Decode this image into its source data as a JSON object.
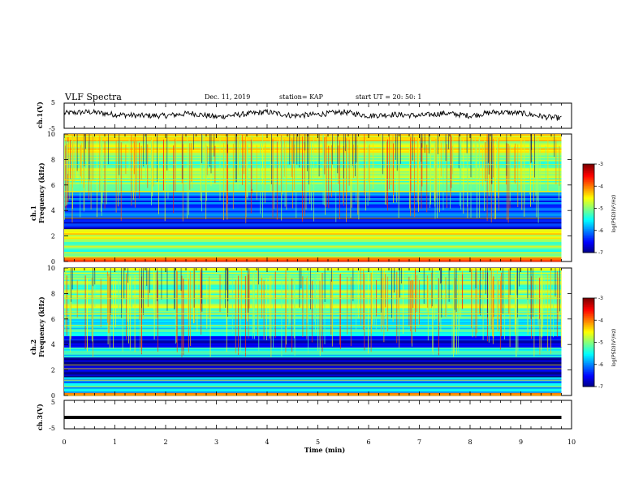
{
  "header": {
    "title": "VLF Spectra",
    "date": "Dec. 11, 2019",
    "station": "station= KAP",
    "start": "start  UT =   20: 50: 1"
  },
  "chart_data": [
    {
      "type": "line",
      "panel": "ch1-waveform",
      "ylabel": "ch.1(V)",
      "ylim": [
        -5,
        5
      ],
      "yticks": [
        "5",
        "-5"
      ],
      "xlim": [
        0,
        10
      ],
      "x": [
        0,
        0.5,
        1,
        1.5,
        2,
        2.5,
        3,
        3.5,
        4,
        4.5,
        5,
        5.5,
        6,
        6.5,
        7,
        7.5,
        8,
        8.5,
        9,
        9.5,
        9.8
      ],
      "values": [
        1.0,
        1.5,
        0.5,
        0.0,
        0.0,
        1.0,
        -0.5,
        0.5,
        1.5,
        0.0,
        0.5,
        1.5,
        0.0,
        0.5,
        0.0,
        1.0,
        0.0,
        1.5,
        1.0,
        -0.5,
        -1.0
      ],
      "color": "#000000"
    },
    {
      "type": "heatmap",
      "panel": "ch1-spectrogram",
      "ylabel": "ch.1\nFrequency (kHz)",
      "ylim": [
        0,
        10
      ],
      "yticks": [
        "0",
        "2",
        "4",
        "6",
        "8",
        "10"
      ],
      "xlim": [
        0,
        9.8
      ],
      "zlabel": "log(PSD)(V²/Hz)",
      "zlim": [
        -7,
        -3
      ],
      "zticks": [
        "-3",
        "-4",
        "-5",
        "-6",
        "-7"
      ],
      "bands": [
        {
          "from": 0,
          "to": 0.3,
          "level": -3.8
        },
        {
          "from": 0.3,
          "to": 1.8,
          "level": -5.2
        },
        {
          "from": 1.8,
          "to": 2.6,
          "level": -4.6
        },
        {
          "from": 2.6,
          "to": 3.5,
          "level": -6.6
        },
        {
          "from": 3.5,
          "to": 4.2,
          "level": -6.0
        },
        {
          "from": 4.2,
          "to": 5.5,
          "level": -6.2
        },
        {
          "from": 5.5,
          "to": 8.5,
          "level": -5.0
        },
        {
          "from": 8.5,
          "to": 10,
          "level": -4.6
        }
      ]
    },
    {
      "type": "heatmap",
      "panel": "ch2-spectrogram",
      "ylabel": "ch.2\nFrequency (kHz)",
      "ylim": [
        0,
        10
      ],
      "yticks": [
        "0",
        "2",
        "4",
        "6",
        "8",
        "10"
      ],
      "xlim": [
        0,
        9.8
      ],
      "zlabel": "log(PSD)(V²/Hz)",
      "zlim": [
        -7,
        -3
      ],
      "zticks": [
        "-3",
        "-4",
        "-5",
        "-6",
        "-7"
      ],
      "bands": [
        {
          "from": 0,
          "to": 0.2,
          "level": -3.8
        },
        {
          "from": 0.2,
          "to": 1.5,
          "level": -5.8
        },
        {
          "from": 1.5,
          "to": 3.0,
          "level": -6.9
        },
        {
          "from": 3.0,
          "to": 3.8,
          "level": -5.4
        },
        {
          "from": 3.8,
          "to": 4.7,
          "level": -6.5
        },
        {
          "from": 4.7,
          "to": 6.5,
          "level": -5.4
        },
        {
          "from": 6.5,
          "to": 10,
          "level": -5.0
        }
      ]
    },
    {
      "type": "line",
      "panel": "ch3-waveform",
      "ylabel": "ch.3(V)",
      "ylim": [
        -5,
        5
      ],
      "yticks": [
        "5",
        "-5"
      ],
      "xlim": [
        0,
        10
      ],
      "x": [
        0,
        9.8
      ],
      "values": [
        -1,
        -1
      ],
      "color": "#000000"
    }
  ],
  "xaxis": {
    "label": "Time (min)",
    "ticks": [
      "0",
      "1",
      "2",
      "3",
      "4",
      "5",
      "6",
      "7",
      "8",
      "9",
      "10"
    ]
  }
}
